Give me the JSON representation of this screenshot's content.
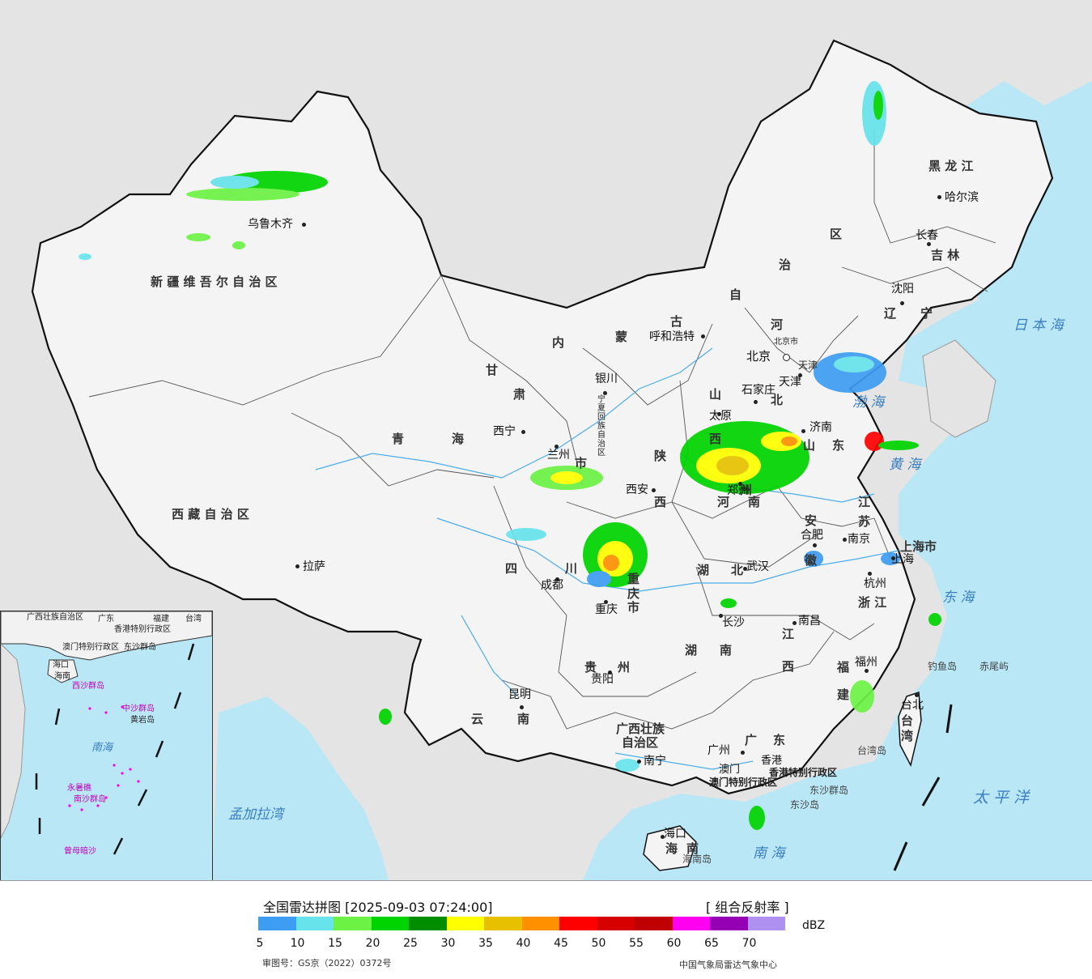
{
  "map": {
    "provinces": [
      "新疆维吾尔自治区",
      "西藏自治区",
      "青海",
      "甘肃",
      "内蒙古自治区",
      "黑龙江",
      "吉林",
      "辽宁",
      "河北",
      "山西",
      "陕西",
      "宁夏回族自治区",
      "四川",
      "重庆市",
      "云南",
      "贵州",
      "广西壮族自治区",
      "广东",
      "湖南",
      "湖北",
      "河南",
      "山东",
      "江苏",
      "安徽",
      "浙江",
      "江西",
      "福建",
      "台湾",
      "海南",
      "上海市",
      "天津",
      "北京市",
      "香港特别行政区",
      "澳门特别行政区"
    ],
    "labels": {
      "xinjiang": "新 疆 维 吾 尔 自 治 区",
      "xizang": "西 藏 自 治 区",
      "qinghai_q": "青",
      "qinghai_h": "海",
      "gansu_g": "甘",
      "gansu_s": "肃",
      "nmg_nei": "内",
      "nmg_meng": "蒙",
      "nmg_gu": "古",
      "nmg_zi": "自",
      "nmg_zhi": "治",
      "nmg_qu": "区",
      "heilongjiang": "黑 龙 江",
      "jilin": "吉 林",
      "liaoning_l": "辽",
      "liaoning_n": "宁",
      "hebei_he": "河",
      "hebei_bei": "北",
      "shanxi_s": "山",
      "shanxi_x": "西",
      "shaanxi_s": "陕",
      "shaanxi_x": "西",
      "ningxia": "宁夏回族自治区",
      "sichuan_s": "四",
      "sichuan_c": "川",
      "chongqing_1": "重",
      "chongqing_2": "庆",
      "chongqing_3": "市",
      "yunnan_y": "云",
      "yunnan_n": "南",
      "guizhou_g": "贵",
      "guizhou_z": "州",
      "guangxi_1": "广西壮族",
      "guangxi_2": "自治区",
      "guangdong_g": "广",
      "guangdong_d": "东",
      "hunan_h": "湖",
      "hunan_n": "南",
      "hubei_h": "湖",
      "hubei_b": "北",
      "henan_h": "河",
      "henan_n": "南",
      "shandong_s": "山",
      "shandong_d": "东",
      "jiangsu_j": "江",
      "jiangsu_s": "苏",
      "anhui_a": "安",
      "anhui_h": "徽",
      "zhejiang": "浙 江",
      "jiangxi_j": "江",
      "jiangxi_x": "西",
      "fujian_f": "福",
      "fujian_j": "建",
      "taiwan_1": "台",
      "taiwan_2": "湾",
      "hainan_h": "海",
      "hainan_n": "南",
      "shanghai": "上海市",
      "tianjin": "天津",
      "beijing_city": "北京市",
      "hk": "香港特别行政区",
      "macau": "澳门特别行政区",
      "lanzhou_shi": "市",
      "yanzhou_shi": "州"
    },
    "cities": {
      "urumqi": "乌鲁木齐",
      "lhasa": "拉萨",
      "xining": "西宁",
      "lanzhou": "兰州",
      "yinchuan": "银川",
      "hohhot": "呼和浩特",
      "beijing": "北京",
      "tianjin": "天津",
      "shijiazhuang": "石家庄",
      "taiyuan": "太原",
      "jinan": "济南",
      "zhengzhou": "郑州",
      "xian": "西安",
      "chengdu": "成都",
      "chongqing": "重庆",
      "wuhan": "武汉",
      "hefei": "合肥",
      "nanjing": "南京",
      "shanghai": "上海",
      "hangzhou": "杭州",
      "nanchang": "南昌",
      "changsha": "长沙",
      "guiyang": "贵阳",
      "kunming": "昆明",
      "nanning": "南宁",
      "guangzhou": "广州",
      "hongkong": "香港",
      "macau": "澳门",
      "haikou": "海口",
      "fuzhou": "福州",
      "taipei": "台北",
      "shenyang": "沈阳",
      "changchun": "长春",
      "harbin": "哈尔滨"
    },
    "seas": {
      "japan_sea": "日 本 海",
      "bohai": "渤 海",
      "yellow_sea": "黄 海",
      "east_sea": "东 海",
      "pacific": "太 平 洋",
      "south_sea": "南 海",
      "bengal": "孟加拉湾"
    },
    "islands": {
      "diaoyu": "钓鱼岛",
      "chiwei": "赤尾屿",
      "taiwan_isl": "台湾岛",
      "dongsha_q": "东沙群岛",
      "dongsha": "东沙岛",
      "hainan_isl": "海南岛"
    }
  },
  "inset": {
    "labels": [
      "广西壮族自治区",
      "广东",
      "福建",
      "台湾",
      "香港特别行政区",
      "澳门特别行政区",
      "海口",
      "海南",
      "东沙群岛",
      "西沙群岛",
      "中沙群岛",
      "黄岩岛",
      "南海",
      "永暑礁",
      "南沙群岛",
      "曾母暗沙"
    ],
    "colors": {
      "sea": "#b9e7f6",
      "land": "#f2f2f2"
    }
  },
  "legend": {
    "title": "全国雷达拼图 [2025-09-03 07:24:00]",
    "product": "[ 组合反射率 ]",
    "unit": "dBZ",
    "ticks": [
      "5",
      "10",
      "15",
      "20",
      "25",
      "30",
      "35",
      "40",
      "45",
      "50",
      "55",
      "60",
      "65",
      "70"
    ],
    "colors": [
      "#3d9df2",
      "#66e3eb",
      "#6bf244",
      "#00d400",
      "#008e00",
      "#ffff00",
      "#e7c000",
      "#ff9000",
      "#ff0000",
      "#d60000",
      "#c00000",
      "#ff00f0",
      "#9600b4",
      "#ae90f0"
    ],
    "approval": "审图号：GS京（2022）0372号",
    "producer": "中国气象局雷达气象中心"
  },
  "style": {
    "land": "#f4f4f4",
    "sea": "#b9e7f6",
    "foreign": "#e4e4e4",
    "border": "#111111"
  }
}
